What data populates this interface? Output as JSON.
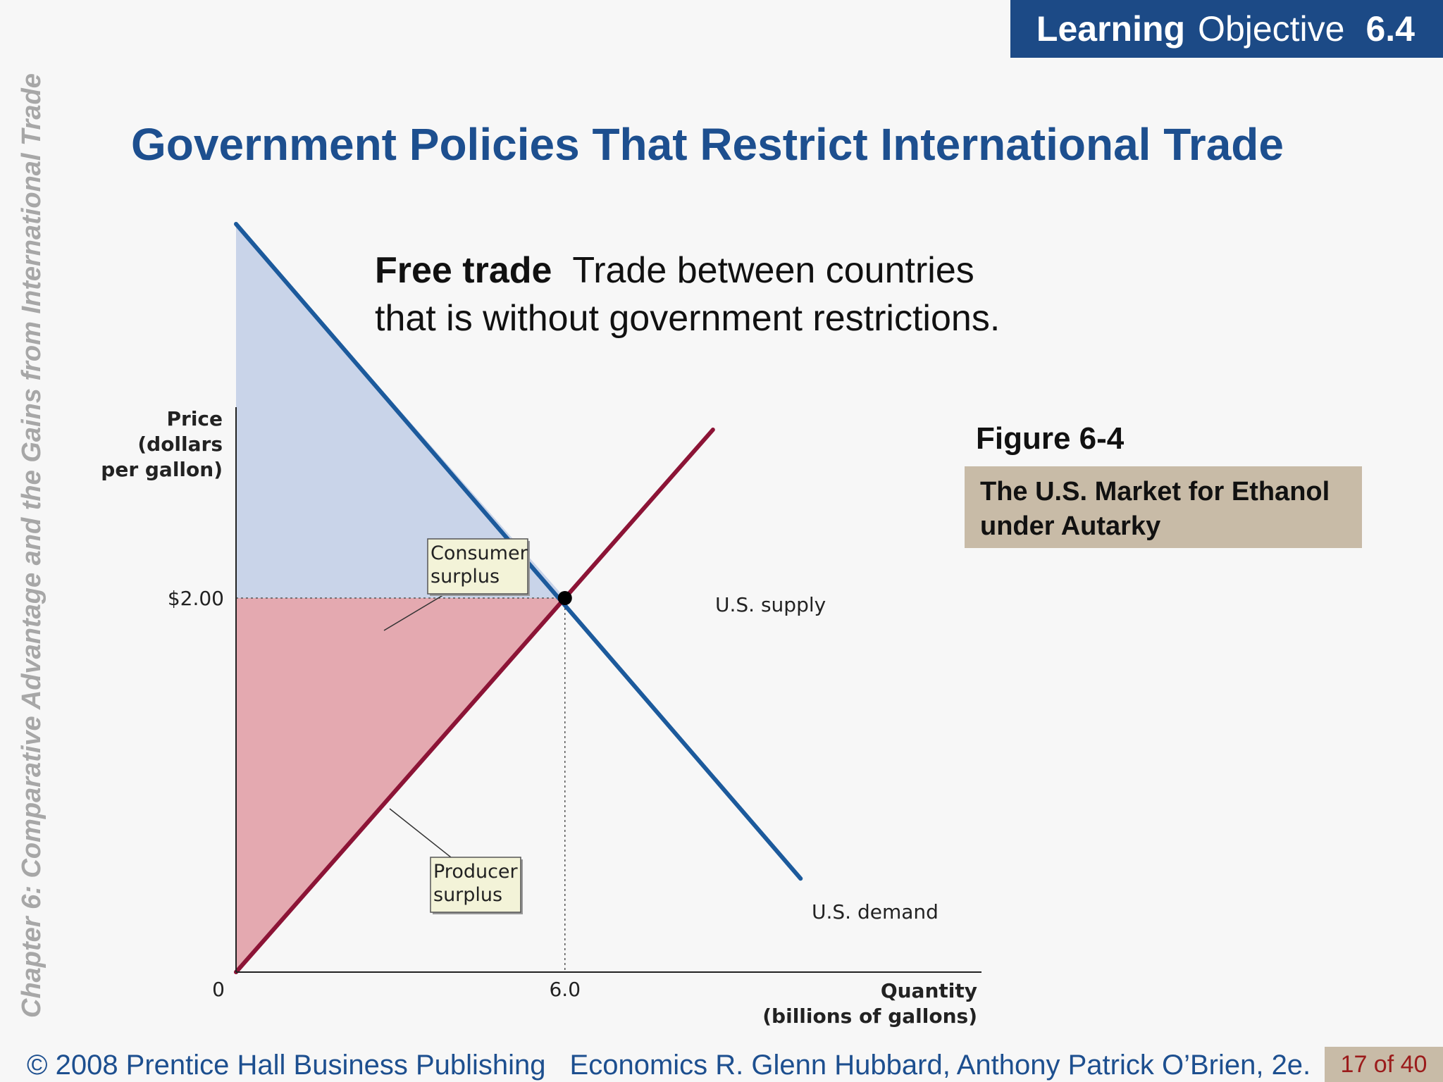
{
  "header": {
    "lo_word1": "Learning",
    "lo_word2": "Objective",
    "lo_number": "6.4"
  },
  "sidebar_text": "Chapter 6:  Comparative Advantage and the Gains from International Trade",
  "title": "Government Policies That Restrict International Trade",
  "definition": {
    "term": "Free trade",
    "text_line1": "Trade between countries",
    "text_line2": "that is without government restrictions."
  },
  "figure": {
    "number": "Figure 6-4",
    "caption_line1": "The U.S. Market for Ethanol",
    "caption_line2": "under Autarky"
  },
  "chart_data": {
    "type": "line",
    "ylabel_lines": [
      "Price",
      "(dollars",
      "per gallon)"
    ],
    "xlabel_lines": [
      "Quantity",
      "(billions of gallons)"
    ],
    "xlim": [
      0,
      13.6
    ],
    "ylim": [
      0,
      4.0
    ],
    "x_ticks": [
      {
        "value": 0,
        "label": "0"
      },
      {
        "value": 6.0,
        "label": "6.0"
      }
    ],
    "y_ticks": [
      {
        "value": 2.0,
        "label": "$2.00"
      }
    ],
    "series": [
      {
        "name": "U.S. demand",
        "color": "#1c5a9c",
        "points": [
          [
            0,
            4.0
          ],
          [
            10.3,
            0.5
          ]
        ]
      },
      {
        "name": "U.S. supply",
        "color": "#8c1436",
        "points": [
          [
            0,
            0
          ],
          [
            8.7,
            2.9
          ]
        ]
      }
    ],
    "equilibrium": {
      "x": 6.0,
      "y": 2.0
    },
    "areas": [
      {
        "label_lines": [
          "Consumer",
          "surplus"
        ],
        "color": "#c9d4e9",
        "points": [
          [
            0,
            4.0
          ],
          [
            6.0,
            2.0
          ],
          [
            0,
            2.0
          ]
        ]
      },
      {
        "label_lines": [
          "Producer",
          "surplus"
        ],
        "color": "#e4a9b0",
        "points": [
          [
            0,
            2.0
          ],
          [
            6.0,
            2.0
          ],
          [
            0,
            0
          ]
        ]
      }
    ],
    "grid": false
  },
  "footer": {
    "copyright": "© 2008 Prentice Hall Business Publishing",
    "book": "Economics  R. Glenn Hubbard, Anthony Patrick O’Brien, 2e.",
    "page": "17 of 40"
  }
}
